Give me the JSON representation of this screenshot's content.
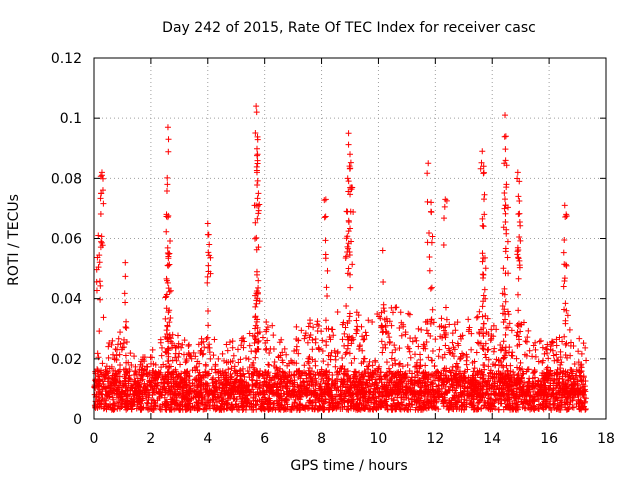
{
  "chart_data": {
    "type": "scatter",
    "title": "Day 242 of 2015, Rate Of TEC Index for receiver casc",
    "xlabel": "GPS time / hours",
    "ylabel": "ROTI / TECUs",
    "xlim": [
      0,
      18
    ],
    "ylim": [
      0,
      0.12
    ],
    "x_ticks": [
      0,
      2,
      4,
      6,
      8,
      10,
      12,
      14,
      16,
      18
    ],
    "x_tick_labels": [
      "0",
      "2",
      "4",
      "6",
      "8",
      "10",
      "12",
      "14",
      "16",
      "18"
    ],
    "y_ticks": [
      0,
      0.02,
      0.04,
      0.06,
      0.08,
      0.1,
      0.12
    ],
    "y_tick_labels": [
      "0",
      "0.02",
      "0.04",
      "0.06",
      "0.08",
      "0.1",
      "0.12"
    ],
    "grid": true,
    "marker": "+",
    "color": "#ff0000",
    "data_range": [
      0,
      17.3
    ],
    "peaks": [
      {
        "x": 0.15,
        "y": 0.061
      },
      {
        "x": 0.28,
        "y": 0.082
      },
      {
        "x": 0.25,
        "y": 0.075
      },
      {
        "x": 1.1,
        "y": 0.052
      },
      {
        "x": 2.6,
        "y": 0.097
      },
      {
        "x": 2.62,
        "y": 0.093
      },
      {
        "x": 2.58,
        "y": 0.078
      },
      {
        "x": 2.55,
        "y": 0.068
      },
      {
        "x": 2.65,
        "y": 0.055
      },
      {
        "x": 4.0,
        "y": 0.065
      },
      {
        "x": 4.05,
        "y": 0.058
      },
      {
        "x": 5.7,
        "y": 0.104
      },
      {
        "x": 5.72,
        "y": 0.102
      },
      {
        "x": 5.75,
        "y": 0.088
      },
      {
        "x": 5.73,
        "y": 0.082
      },
      {
        "x": 5.78,
        "y": 0.075
      },
      {
        "x": 5.7,
        "y": 0.071
      },
      {
        "x": 8.15,
        "y": 0.073
      },
      {
        "x": 8.95,
        "y": 0.095
      },
      {
        "x": 9.0,
        "y": 0.088
      },
      {
        "x": 8.92,
        "y": 0.08
      },
      {
        "x": 9.05,
        "y": 0.077
      },
      {
        "x": 8.88,
        "y": 0.069
      },
      {
        "x": 11.75,
        "y": 0.085
      },
      {
        "x": 11.85,
        "y": 0.072
      },
      {
        "x": 12.35,
        "y": 0.073
      },
      {
        "x": 13.65,
        "y": 0.089
      },
      {
        "x": 13.7,
        "y": 0.084
      },
      {
        "x": 13.72,
        "y": 0.068
      },
      {
        "x": 14.45,
        "y": 0.101
      },
      {
        "x": 14.48,
        "y": 0.094
      },
      {
        "x": 14.42,
        "y": 0.085
      },
      {
        "x": 14.5,
        "y": 0.078
      },
      {
        "x": 14.9,
        "y": 0.082
      },
      {
        "x": 14.95,
        "y": 0.079
      },
      {
        "x": 14.92,
        "y": 0.074
      },
      {
        "x": 16.55,
        "y": 0.071
      },
      {
        "x": 16.6,
        "y": 0.068
      },
      {
        "x": 10.15,
        "y": 0.056
      }
    ],
    "profile": [
      {
        "x": 0.0,
        "y": 0.015
      },
      {
        "x": 0.5,
        "y": 0.025
      },
      {
        "x": 1.0,
        "y": 0.03
      },
      {
        "x": 1.5,
        "y": 0.02
      },
      {
        "x": 2.0,
        "y": 0.022
      },
      {
        "x": 2.5,
        "y": 0.03
      },
      {
        "x": 3.0,
        "y": 0.028
      },
      {
        "x": 3.5,
        "y": 0.024
      },
      {
        "x": 4.0,
        "y": 0.03
      },
      {
        "x": 4.5,
        "y": 0.025
      },
      {
        "x": 5.0,
        "y": 0.027
      },
      {
        "x": 5.5,
        "y": 0.03
      },
      {
        "x": 6.0,
        "y": 0.034
      },
      {
        "x": 6.5,
        "y": 0.03
      },
      {
        "x": 7.0,
        "y": 0.03
      },
      {
        "x": 7.5,
        "y": 0.034
      },
      {
        "x": 8.0,
        "y": 0.033
      },
      {
        "x": 8.5,
        "y": 0.036
      },
      {
        "x": 9.0,
        "y": 0.038
      },
      {
        "x": 9.5,
        "y": 0.033
      },
      {
        "x": 10.0,
        "y": 0.038
      },
      {
        "x": 10.5,
        "y": 0.038
      },
      {
        "x": 11.0,
        "y": 0.036
      },
      {
        "x": 11.5,
        "y": 0.033
      },
      {
        "x": 12.0,
        "y": 0.035
      },
      {
        "x": 12.5,
        "y": 0.036
      },
      {
        "x": 13.0,
        "y": 0.032
      },
      {
        "x": 13.5,
        "y": 0.036
      },
      {
        "x": 14.0,
        "y": 0.035
      },
      {
        "x": 14.5,
        "y": 0.037
      },
      {
        "x": 15.0,
        "y": 0.034
      },
      {
        "x": 15.5,
        "y": 0.028
      },
      {
        "x": 16.0,
        "y": 0.026
      },
      {
        "x": 16.5,
        "y": 0.032
      },
      {
        "x": 17.0,
        "y": 0.03
      },
      {
        "x": 17.3,
        "y": 0.025
      }
    ],
    "baseline_range": [
      0.003,
      0.012
    ]
  }
}
